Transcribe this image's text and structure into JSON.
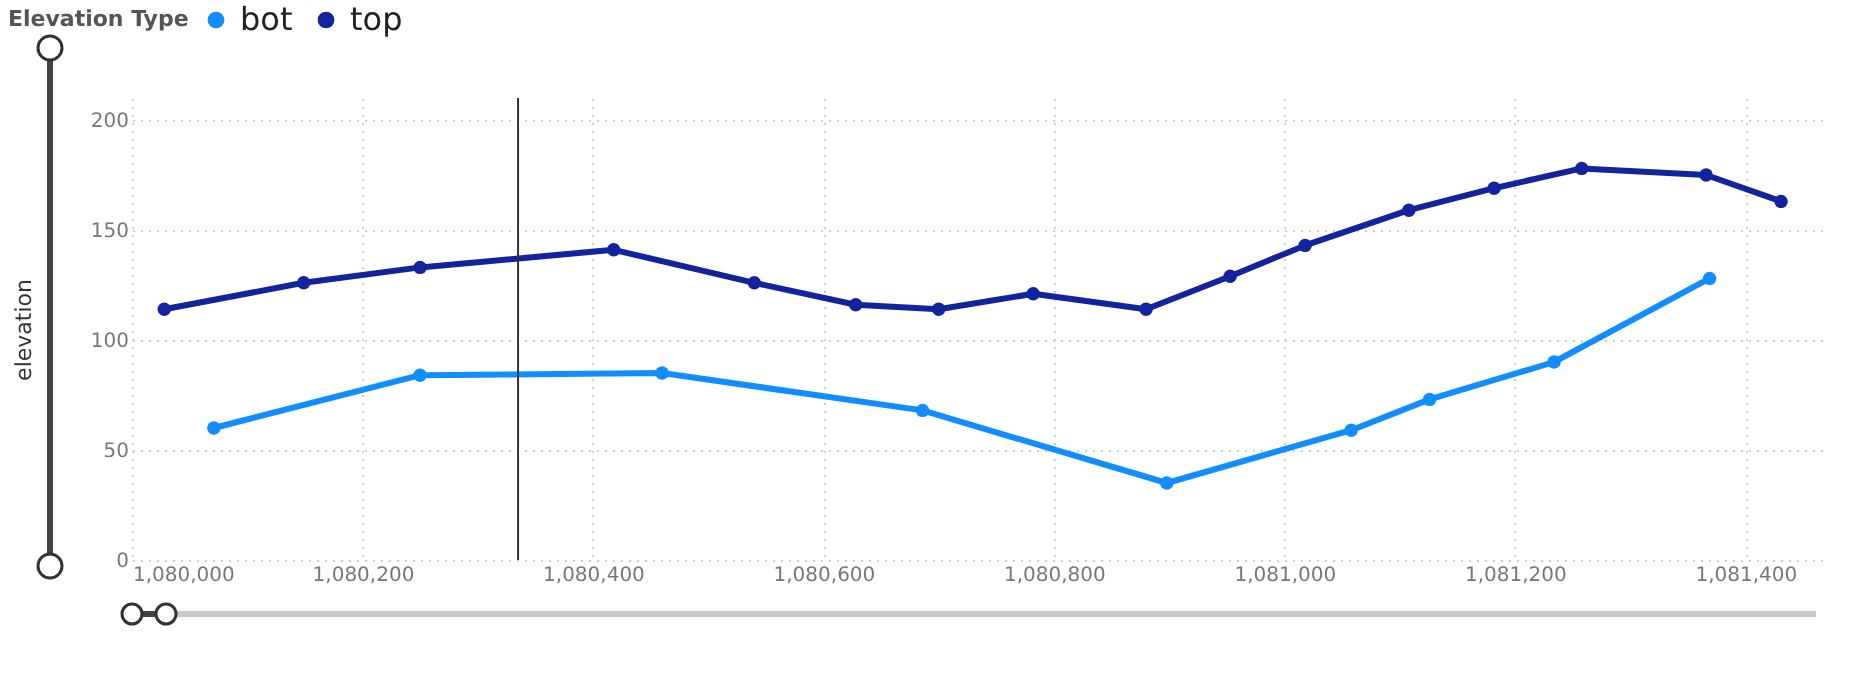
{
  "chart_data": {
    "type": "line",
    "ylabel": "elevation",
    "legend_title": "Elevation Type",
    "legend": "top left",
    "grid": true,
    "marker": "circle",
    "line_style": "solid",
    "xlim": [
      1080000,
      1081470
    ],
    "xticks": [
      {
        "value": 1080000,
        "label": "1,080,000"
      },
      {
        "value": 1080200,
        "label": "1,080,200"
      },
      {
        "value": 1080400,
        "label": "1,080,400"
      },
      {
        "value": 1080600,
        "label": "1,080,600"
      },
      {
        "value": 1080800,
        "label": "1,080,800"
      },
      {
        "value": 1081000,
        "label": "1,081,000"
      },
      {
        "value": 1081200,
        "label": "1,081,200"
      },
      {
        "value": 1081400,
        "label": "1,081,400"
      }
    ],
    "ylim": [
      0,
      210
    ],
    "yticks": [
      0,
      50,
      100,
      150,
      200
    ],
    "series": [
      {
        "name": "bot",
        "color": "#118dff",
        "x": [
          1080071,
          1080250,
          1080460,
          1080686,
          1080898,
          1081058,
          1081126,
          1081234,
          1081369
        ],
        "values": [
          60,
          84,
          85,
          68,
          35,
          59,
          73,
          90,
          128
        ]
      },
      {
        "name": "top",
        "color": "#12239e",
        "x": [
          1080028,
          1080149,
          1080250,
          1080418,
          1080540,
          1080628,
          1080700,
          1080782,
          1080880,
          1080953,
          1081018,
          1081108,
          1081182,
          1081258,
          1081366,
          1081431
        ],
        "values": [
          114,
          126,
          133,
          141,
          126,
          116,
          114,
          121,
          114,
          129,
          143,
          159,
          169,
          178,
          175,
          163
        ]
      }
    ],
    "ref_lines": [
      {
        "axis": "x",
        "value": 1080335,
        "color": "#333333"
      }
    ]
  }
}
